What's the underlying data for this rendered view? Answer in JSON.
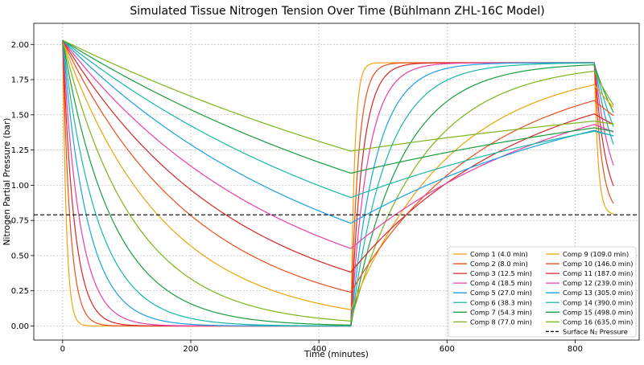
{
  "chart_data": {
    "type": "line",
    "title": "Simulated Tissue Nitrogen Tension Over Time (Bühlmann ZHL-16C Model)",
    "xlabel": "Time (minutes)",
    "ylabel": "Nitrogen Partial Pressure (bar)",
    "xlim": [
      -45,
      900
    ],
    "ylim": [
      -0.1,
      2.15
    ],
    "xticks": [
      0,
      200,
      400,
      600,
      800
    ],
    "yticks": [
      0.0,
      0.25,
      0.5,
      0.75,
      1.0,
      1.25,
      1.5,
      1.75,
      2.0
    ],
    "grid": true,
    "legend_position": "bottom-right",
    "profile": {
      "initial_tension": 2.03,
      "phases": [
        {
          "from": 0,
          "to": 450,
          "ambient": 0.0
        },
        {
          "from": 450,
          "to": 830,
          "ambient": 1.87
        },
        {
          "from": 830,
          "to": 860,
          "ambient": 0.79
        }
      ]
    },
    "series": [
      {
        "name": "Comp 1 (4.0 min)",
        "half_time": 4.0,
        "color": "#f0a30a"
      },
      {
        "name": "Comp 2 (8.0 min)",
        "half_time": 8.0,
        "color": "#e8501c"
      },
      {
        "name": "Comp 3 (12.5 min)",
        "half_time": 12.5,
        "color": "#d62728"
      },
      {
        "name": "Comp 4 (18.5 min)",
        "half_time": 18.5,
        "color": "#e83fa8"
      },
      {
        "name": "Comp 5 (27.0 min)",
        "half_time": 27.0,
        "color": "#1ba1e2"
      },
      {
        "name": "Comp 6 (38.3 min)",
        "half_time": 38.3,
        "color": "#17b8a6"
      },
      {
        "name": "Comp 7 (54.3 min)",
        "half_time": 54.3,
        "color": "#1a9c3e"
      },
      {
        "name": "Comp 8 (77.0 min)",
        "half_time": 77.0,
        "color": "#7cb518"
      },
      {
        "name": "Comp 9 (109.0 min)",
        "half_time": 109.0,
        "color": "#f0a30a"
      },
      {
        "name": "Comp 10 (146.0 min)",
        "half_time": 146.0,
        "color": "#e8501c"
      },
      {
        "name": "Comp 11 (187.0 min)",
        "half_time": 187.0,
        "color": "#d62728"
      },
      {
        "name": "Comp 12 (239.0 min)",
        "half_time": 239.0,
        "color": "#e83fa8"
      },
      {
        "name": "Comp 13 (305.0 min)",
        "half_time": 305.0,
        "color": "#1ba1e2"
      },
      {
        "name": "Comp 14 (390.0 min)",
        "half_time": 390.0,
        "color": "#17b8a6"
      },
      {
        "name": "Comp 15 (498.0 min)",
        "half_time": 498.0,
        "color": "#1a9c3e"
      },
      {
        "name": "Comp 16 (635.0 min)",
        "half_time": 635.0,
        "color": "#7cb518"
      }
    ],
    "reference_line": {
      "name": "Surface N₂ Pressure",
      "value": 0.79,
      "color": "#000000",
      "style": "dashed"
    }
  }
}
